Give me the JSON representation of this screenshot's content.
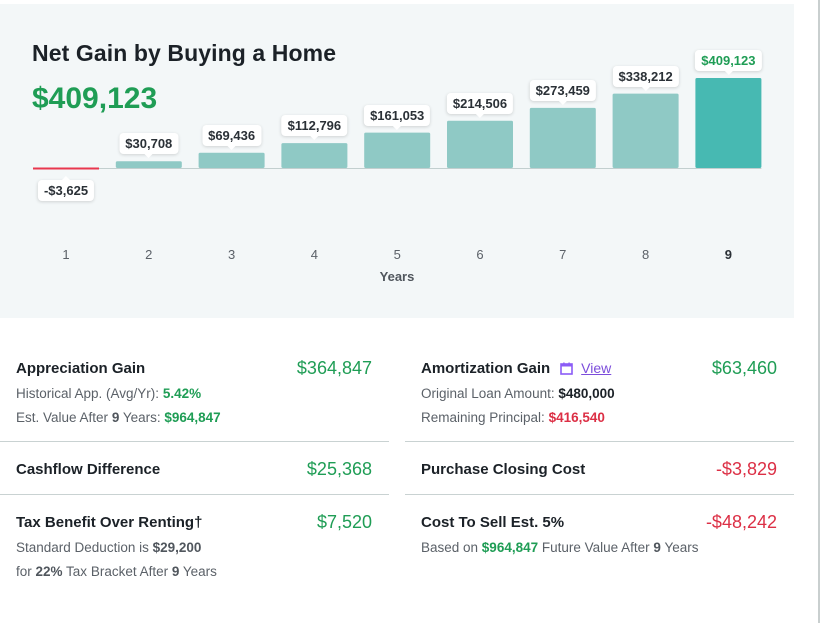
{
  "header": {
    "title": "Net Gain by Buying a Home",
    "total": "$409,123"
  },
  "chart_data": {
    "type": "bar",
    "title": "Net Gain by Buying a Home",
    "xlabel": "Years",
    "ylabel": "",
    "categories": [
      "1",
      "2",
      "3",
      "4",
      "5",
      "6",
      "7",
      "8",
      "9"
    ],
    "values": [
      -3625,
      30708,
      69436,
      112796,
      161053,
      214506,
      273459,
      338212,
      409123
    ],
    "data_labels": [
      "-$3,625",
      "$30,708",
      "$69,436",
      "$112,796",
      "$161,053",
      "$214,506",
      "$273,459",
      "$338,212",
      "$409,123"
    ],
    "highlighted_category": "9",
    "ylim": [
      -3625,
      409123
    ],
    "grid": false,
    "colors": {
      "bar": "#8fc9c5",
      "highlight": "#47b9b2",
      "negative": "#e8374e",
      "baseline": "#c2cfcf"
    }
  },
  "details": {
    "appreciation": {
      "title": "Appreciation Gain",
      "value": "$364,847",
      "line1_label": "Historical App. (Avg/Yr): ",
      "line1_value": "5.42%",
      "line2_label_a": "Est. Value After ",
      "line2_years": "9",
      "line2_label_b": " Years: ",
      "line2_value": "$964,847"
    },
    "amortization": {
      "title": "Amortization Gain",
      "icon": "calendar-icon",
      "view_link": "View",
      "value": "$63,460",
      "line1_label": "Original Loan Amount: ",
      "line1_value": "$480,000",
      "line2_label": "Remaining Principal: ",
      "line2_value": "$416,540"
    },
    "cashflow": {
      "title": "Cashflow Difference",
      "value": "$25,368"
    },
    "closing": {
      "title": "Purchase Closing Cost",
      "value": "-$3,829"
    },
    "tax": {
      "title": "Tax Benefit Over Renting†",
      "value": "$7,520",
      "line1_label": "Standard Deduction is ",
      "line1_value": "$29,200",
      "line2_a": "for ",
      "line2_pct": "22%",
      "line2_b": " Tax Bracket After ",
      "line2_years": "9",
      "line2_c": " Years"
    },
    "sell": {
      "title": "Cost To Sell Est. 5%",
      "value": "-$48,242",
      "line1_a": "Based on ",
      "line1_value": "$964,847",
      "line1_b": " Future Value After ",
      "line1_years": "9",
      "line1_c": " Years"
    }
  }
}
